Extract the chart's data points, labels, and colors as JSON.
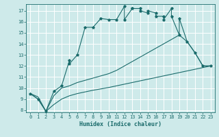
{
  "xlabel": "Humidex (Indice chaleur)",
  "bg_color": "#ceeaea",
  "line_color": "#1a6b6b",
  "grid_color": "#b8d8d8",
  "xlim": [
    -0.5,
    23.5
  ],
  "ylim": [
    7.8,
    17.6
  ],
  "yticks": [
    8,
    9,
    10,
    11,
    12,
    13,
    14,
    15,
    16,
    17
  ],
  "xticks": [
    0,
    1,
    2,
    3,
    4,
    5,
    6,
    7,
    8,
    9,
    10,
    11,
    12,
    13,
    14,
    15,
    16,
    17,
    18,
    19,
    20,
    21,
    22,
    23
  ],
  "series1_x": [
    0,
    1,
    2,
    3,
    4,
    5,
    5,
    6,
    7,
    8,
    9,
    10,
    11,
    12,
    12,
    13,
    13,
    14,
    14,
    15,
    15,
    16,
    16,
    17,
    17,
    18,
    18,
    19,
    19,
    20,
    21,
    22,
    23
  ],
  "series1_y": [
    9.5,
    9.0,
    7.9,
    9.7,
    10.2,
    12.5,
    12.2,
    13.0,
    15.5,
    15.5,
    16.3,
    16.2,
    16.2,
    17.4,
    16.2,
    17.2,
    17.2,
    17.2,
    17.0,
    16.8,
    17.0,
    16.8,
    16.5,
    16.5,
    16.2,
    17.2,
    16.5,
    14.8,
    16.3,
    14.2,
    13.2,
    12.0,
    12.0
  ],
  "series2_x": [
    0,
    1,
    2,
    3,
    4,
    5,
    6,
    7,
    8,
    9,
    10,
    11,
    12,
    13,
    14,
    15,
    16,
    17,
    18,
    19,
    20,
    21,
    22,
    23
  ],
  "series2_y": [
    9.5,
    9.0,
    7.9,
    9.3,
    10.0,
    10.2,
    10.5,
    10.7,
    10.9,
    11.1,
    11.3,
    11.6,
    12.0,
    12.4,
    12.8,
    13.2,
    13.6,
    14.0,
    14.4,
    14.8,
    14.2,
    13.2,
    12.0,
    12.0
  ],
  "series3_x": [
    0,
    1,
    2,
    3,
    4,
    5,
    6,
    7,
    8,
    9,
    10,
    11,
    12,
    13,
    14,
    15,
    16,
    17,
    18,
    19,
    20,
    21,
    22,
    23
  ],
  "series3_y": [
    9.5,
    9.2,
    7.9,
    8.5,
    9.0,
    9.3,
    9.5,
    9.65,
    9.8,
    9.92,
    10.05,
    10.2,
    10.35,
    10.5,
    10.65,
    10.8,
    10.95,
    11.1,
    11.25,
    11.4,
    11.55,
    11.7,
    11.85,
    12.0
  ]
}
